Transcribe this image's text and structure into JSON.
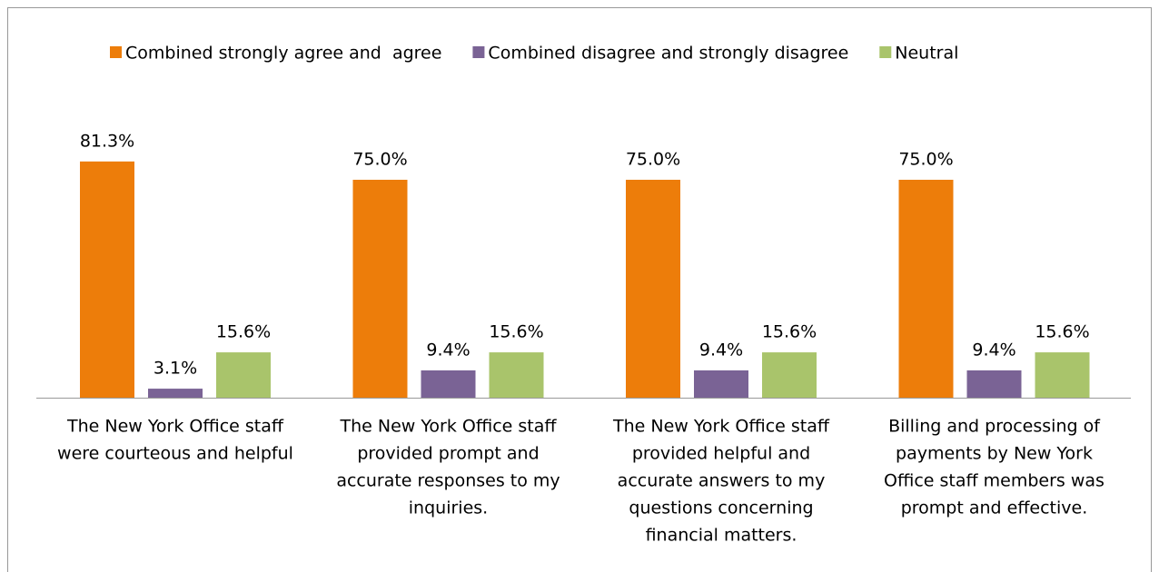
{
  "chart_data": {
    "type": "bar",
    "categories": [
      [
        "The New York Office staff",
        "were courteous and helpful"
      ],
      [
        "The New York Office staff",
        "provided prompt and",
        "accurate responses to my",
        "inquiries."
      ],
      [
        "The New York Office staff",
        "provided helpful and",
        "accurate answers to my",
        "questions concerning",
        "financial matters."
      ],
      [
        "Billing and processing of",
        "payments by New York",
        "Office staff members was",
        "prompt and effective."
      ]
    ],
    "series": [
      {
        "name": "Combined strongly agree and  agree",
        "color": "#ed7d0a",
        "values": [
          81.3,
          75.0,
          75.0,
          75.0
        ],
        "value_labels": [
          "81.3%",
          "75.0%",
          "75.0%",
          "75.0%"
        ]
      },
      {
        "name": "Combined disagree and strongly disagree",
        "color": "#7a6395",
        "values": [
          3.1,
          9.4,
          9.4,
          9.4
        ],
        "value_labels": [
          "3.1%",
          "9.4%",
          "9.4%",
          "9.4%"
        ]
      },
      {
        "name": "Neutral",
        "color": "#a9c46b",
        "values": [
          15.6,
          15.6,
          15.6,
          15.6
        ],
        "value_labels": [
          "15.6%",
          "15.6%",
          "15.6%",
          "15.6%"
        ]
      }
    ],
    "legend": "top"
  }
}
